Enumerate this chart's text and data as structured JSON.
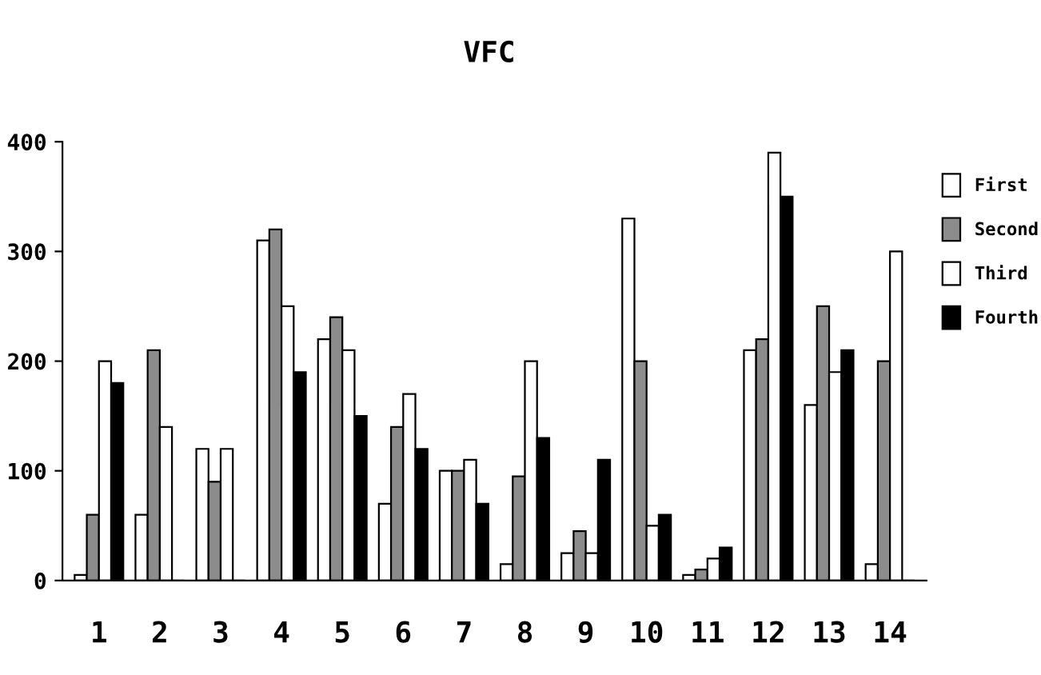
{
  "chart_data": {
    "type": "bar",
    "title": "VFC",
    "categories": [
      "1",
      "2",
      "3",
      "4",
      "5",
      "6",
      "7",
      "8",
      "9",
      "10",
      "11",
      "12",
      "13",
      "14"
    ],
    "series": [
      {
        "name": "First",
        "color": "#ffffff",
        "values": [
          5,
          60,
          120,
          310,
          220,
          70,
          100,
          15,
          25,
          330,
          5,
          210,
          160,
          15
        ]
      },
      {
        "name": "Second",
        "color": "#8c8c8c",
        "values": [
          60,
          210,
          90,
          320,
          240,
          140,
          100,
          95,
          45,
          200,
          10,
          220,
          250,
          200
        ]
      },
      {
        "name": "Third",
        "color": "#ffffff",
        "values": [
          200,
          140,
          120,
          250,
          210,
          170,
          110,
          200,
          25,
          50,
          20,
          390,
          190,
          300
        ]
      },
      {
        "name": "Fourth",
        "color": "#000000",
        "values": [
          180,
          0,
          0,
          190,
          150,
          120,
          70,
          130,
          110,
          60,
          30,
          350,
          210,
          0
        ]
      }
    ],
    "ylim": [
      0,
      400
    ],
    "yticks": [
      0,
      100,
      200,
      300,
      400
    ],
    "grid": false,
    "legend": "right"
  }
}
